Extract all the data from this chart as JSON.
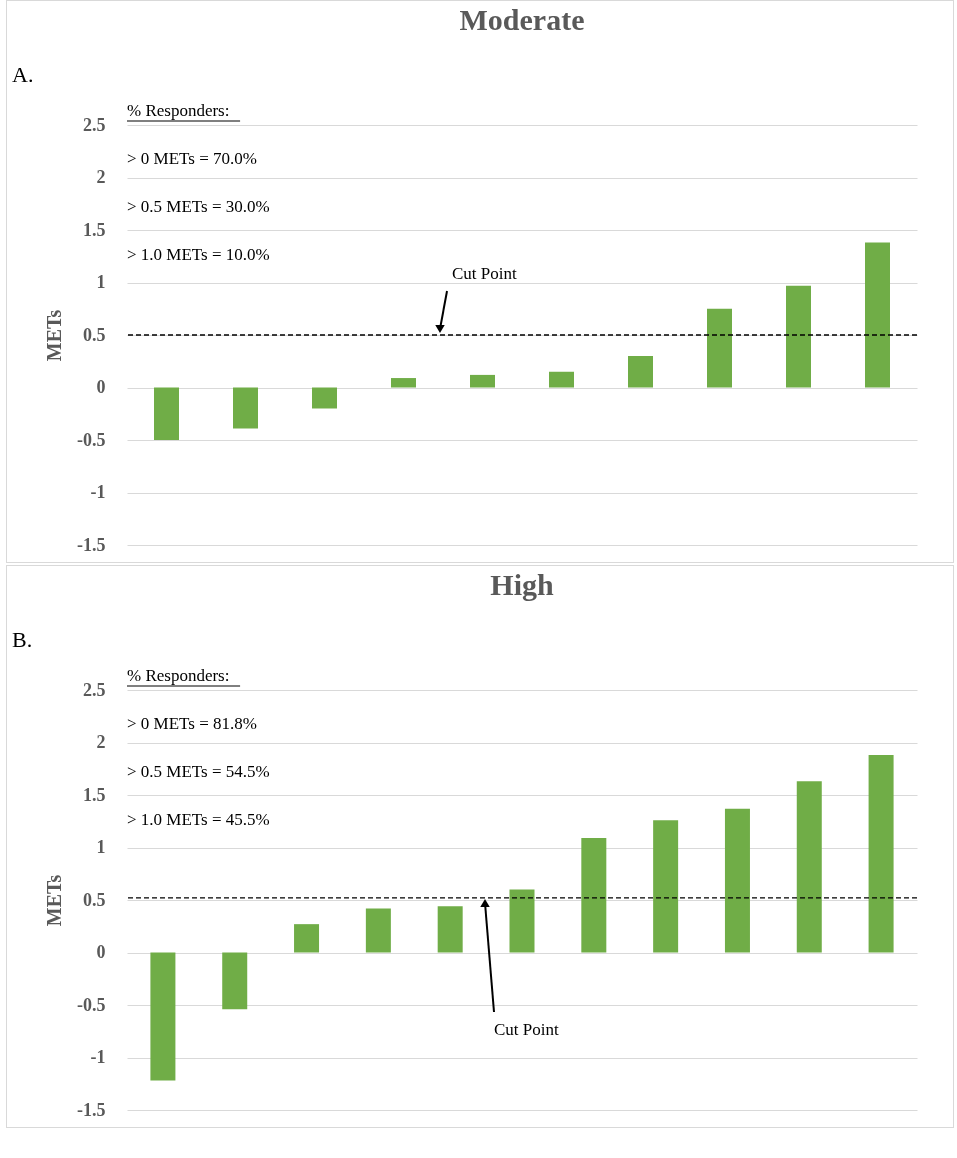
{
  "chart_data": [
    {
      "type": "bar",
      "title": "Moderate",
      "ylabel": "METs",
      "annotations": [
        "A.",
        "% Responders:",
        "> 0 METs = 70.0%",
        "> 0.5 METs = 30.0%",
        "> 1.0 METs = 10.0%",
        "Cut Point"
      ],
      "categories": [
        null,
        null,
        null,
        null,
        null,
        null,
        null,
        null,
        null,
        null
      ],
      "series": [
        {
          "color": "#70ad47",
          "values": [
            -0.5,
            -0.39,
            -0.2,
            0.09,
            0.12,
            0.15,
            0.3,
            0.75,
            0.97,
            1.38
          ]
        }
      ],
      "ylim": [
        -1.5,
        2.5
      ],
      "yticks": [
        -1.5,
        -1,
        -0.5,
        0,
        0.5,
        1,
        1.5,
        2,
        2.5
      ],
      "grid": "y",
      "ref_lines": [
        {
          "axis": "y",
          "value": 0.5,
          "color": "#000000",
          "line_style": "dashed"
        }
      ]
    },
    {
      "type": "bar",
      "title": "High",
      "ylabel": "METs",
      "annotations": [
        "B.",
        "% Responders:",
        "> 0 METs = 81.8%",
        "> 0.5 METs = 54.5%",
        "> 1.0 METs = 45.5%",
        "Cut Point"
      ],
      "categories": [
        null,
        null,
        null,
        null,
        null,
        null,
        null,
        null,
        null,
        null,
        null
      ],
      "series": [
        {
          "color": "#70ad47",
          "values": [
            -1.22,
            -0.54,
            0.27,
            0.42,
            0.44,
            0.6,
            1.09,
            1.26,
            1.37,
            1.63,
            1.88
          ]
        }
      ],
      "ylim": [
        -1.5,
        2.5
      ],
      "yticks": [
        -1.5,
        -1,
        -0.5,
        0,
        0.5,
        1,
        1.5,
        2,
        2.5
      ],
      "grid": "y",
      "ref_lines": [
        {
          "axis": "y",
          "value": 0.52,
          "color": "#000000",
          "line_style": "dashed"
        }
      ]
    }
  ]
}
